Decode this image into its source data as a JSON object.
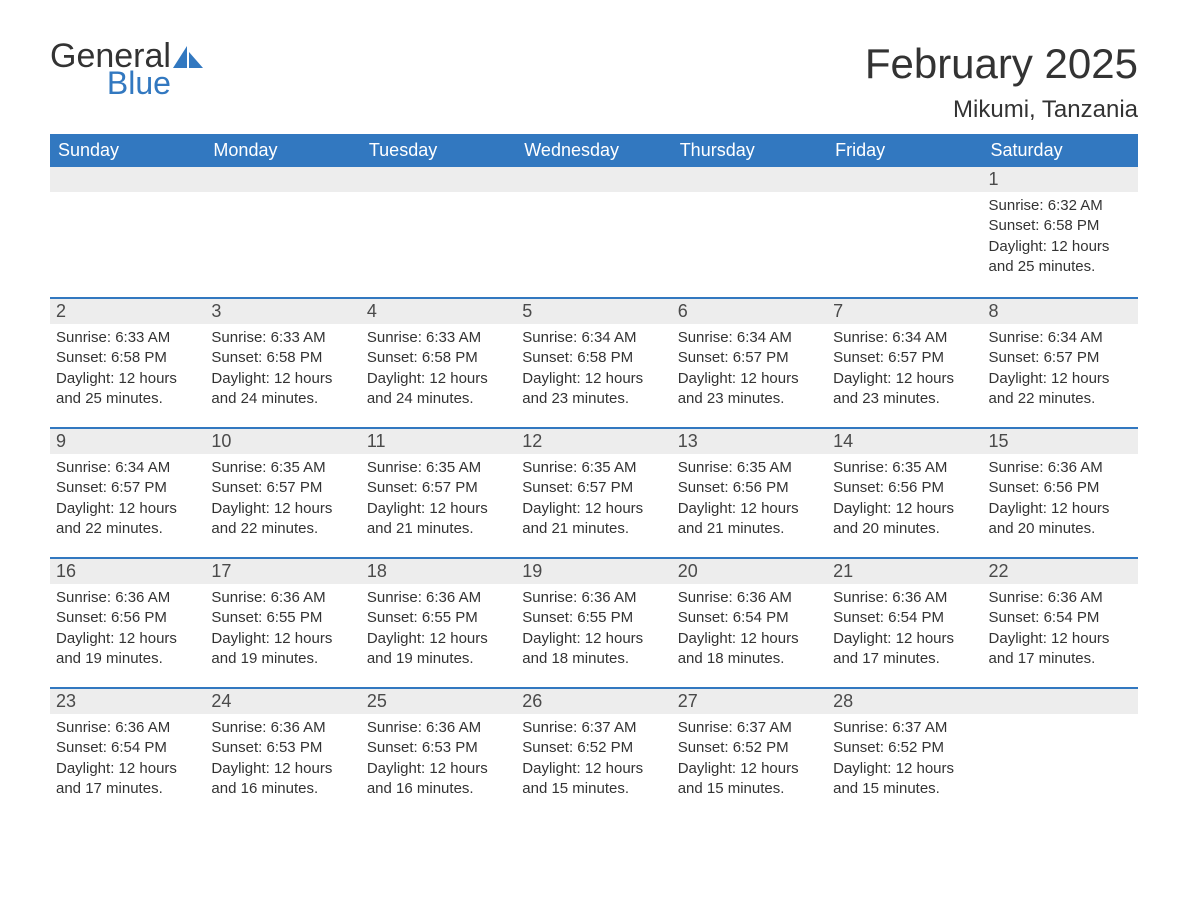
{
  "brand": {
    "word1": "General",
    "word2": "Blue",
    "logo_color": "#3278c0"
  },
  "title": "February 2025",
  "location": "Mikumi, Tanzania",
  "colors": {
    "header_bg": "#3278c0",
    "header_text": "#ffffff",
    "daynum_bg": "#ededed",
    "row_border": "#3278c0",
    "text": "#333333"
  },
  "weekday_labels": [
    "Sunday",
    "Monday",
    "Tuesday",
    "Wednesday",
    "Thursday",
    "Friday",
    "Saturday"
  ],
  "weeks": [
    [
      null,
      null,
      null,
      null,
      null,
      null,
      {
        "n": "1",
        "sunrise": "Sunrise: 6:32 AM",
        "sunset": "Sunset: 6:58 PM",
        "daylight": "Daylight: 12 hours and 25 minutes."
      }
    ],
    [
      {
        "n": "2",
        "sunrise": "Sunrise: 6:33 AM",
        "sunset": "Sunset: 6:58 PM",
        "daylight": "Daylight: 12 hours and 25 minutes."
      },
      {
        "n": "3",
        "sunrise": "Sunrise: 6:33 AM",
        "sunset": "Sunset: 6:58 PM",
        "daylight": "Daylight: 12 hours and 24 minutes."
      },
      {
        "n": "4",
        "sunrise": "Sunrise: 6:33 AM",
        "sunset": "Sunset: 6:58 PM",
        "daylight": "Daylight: 12 hours and 24 minutes."
      },
      {
        "n": "5",
        "sunrise": "Sunrise: 6:34 AM",
        "sunset": "Sunset: 6:58 PM",
        "daylight": "Daylight: 12 hours and 23 minutes."
      },
      {
        "n": "6",
        "sunrise": "Sunrise: 6:34 AM",
        "sunset": "Sunset: 6:57 PM",
        "daylight": "Daylight: 12 hours and 23 minutes."
      },
      {
        "n": "7",
        "sunrise": "Sunrise: 6:34 AM",
        "sunset": "Sunset: 6:57 PM",
        "daylight": "Daylight: 12 hours and 23 minutes."
      },
      {
        "n": "8",
        "sunrise": "Sunrise: 6:34 AM",
        "sunset": "Sunset: 6:57 PM",
        "daylight": "Daylight: 12 hours and 22 minutes."
      }
    ],
    [
      {
        "n": "9",
        "sunrise": "Sunrise: 6:34 AM",
        "sunset": "Sunset: 6:57 PM",
        "daylight": "Daylight: 12 hours and 22 minutes."
      },
      {
        "n": "10",
        "sunrise": "Sunrise: 6:35 AM",
        "sunset": "Sunset: 6:57 PM",
        "daylight": "Daylight: 12 hours and 22 minutes."
      },
      {
        "n": "11",
        "sunrise": "Sunrise: 6:35 AM",
        "sunset": "Sunset: 6:57 PM",
        "daylight": "Daylight: 12 hours and 21 minutes."
      },
      {
        "n": "12",
        "sunrise": "Sunrise: 6:35 AM",
        "sunset": "Sunset: 6:57 PM",
        "daylight": "Daylight: 12 hours and 21 minutes."
      },
      {
        "n": "13",
        "sunrise": "Sunrise: 6:35 AM",
        "sunset": "Sunset: 6:56 PM",
        "daylight": "Daylight: 12 hours and 21 minutes."
      },
      {
        "n": "14",
        "sunrise": "Sunrise: 6:35 AM",
        "sunset": "Sunset: 6:56 PM",
        "daylight": "Daylight: 12 hours and 20 minutes."
      },
      {
        "n": "15",
        "sunrise": "Sunrise: 6:36 AM",
        "sunset": "Sunset: 6:56 PM",
        "daylight": "Daylight: 12 hours and 20 minutes."
      }
    ],
    [
      {
        "n": "16",
        "sunrise": "Sunrise: 6:36 AM",
        "sunset": "Sunset: 6:56 PM",
        "daylight": "Daylight: 12 hours and 19 minutes."
      },
      {
        "n": "17",
        "sunrise": "Sunrise: 6:36 AM",
        "sunset": "Sunset: 6:55 PM",
        "daylight": "Daylight: 12 hours and 19 minutes."
      },
      {
        "n": "18",
        "sunrise": "Sunrise: 6:36 AM",
        "sunset": "Sunset: 6:55 PM",
        "daylight": "Daylight: 12 hours and 19 minutes."
      },
      {
        "n": "19",
        "sunrise": "Sunrise: 6:36 AM",
        "sunset": "Sunset: 6:55 PM",
        "daylight": "Daylight: 12 hours and 18 minutes."
      },
      {
        "n": "20",
        "sunrise": "Sunrise: 6:36 AM",
        "sunset": "Sunset: 6:54 PM",
        "daylight": "Daylight: 12 hours and 18 minutes."
      },
      {
        "n": "21",
        "sunrise": "Sunrise: 6:36 AM",
        "sunset": "Sunset: 6:54 PM",
        "daylight": "Daylight: 12 hours and 17 minutes."
      },
      {
        "n": "22",
        "sunrise": "Sunrise: 6:36 AM",
        "sunset": "Sunset: 6:54 PM",
        "daylight": "Daylight: 12 hours and 17 minutes."
      }
    ],
    [
      {
        "n": "23",
        "sunrise": "Sunrise: 6:36 AM",
        "sunset": "Sunset: 6:54 PM",
        "daylight": "Daylight: 12 hours and 17 minutes."
      },
      {
        "n": "24",
        "sunrise": "Sunrise: 6:36 AM",
        "sunset": "Sunset: 6:53 PM",
        "daylight": "Daylight: 12 hours and 16 minutes."
      },
      {
        "n": "25",
        "sunrise": "Sunrise: 6:36 AM",
        "sunset": "Sunset: 6:53 PM",
        "daylight": "Daylight: 12 hours and 16 minutes."
      },
      {
        "n": "26",
        "sunrise": "Sunrise: 6:37 AM",
        "sunset": "Sunset: 6:52 PM",
        "daylight": "Daylight: 12 hours and 15 minutes."
      },
      {
        "n": "27",
        "sunrise": "Sunrise: 6:37 AM",
        "sunset": "Sunset: 6:52 PM",
        "daylight": "Daylight: 12 hours and 15 minutes."
      },
      {
        "n": "28",
        "sunrise": "Sunrise: 6:37 AM",
        "sunset": "Sunset: 6:52 PM",
        "daylight": "Daylight: 12 hours and 15 minutes."
      },
      null
    ]
  ]
}
